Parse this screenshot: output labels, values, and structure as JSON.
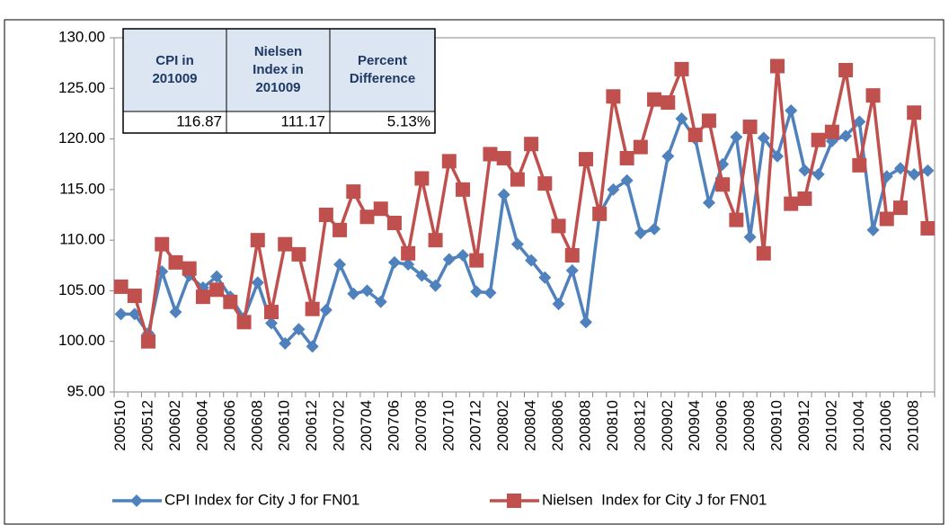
{
  "chart_data": {
    "type": "line",
    "categories": [
      "200510",
      null,
      "200512",
      null,
      "200602",
      null,
      "200604",
      null,
      "200606",
      null,
      "200608",
      null,
      "200610",
      null,
      "200612",
      null,
      "200702",
      null,
      "200704",
      null,
      "200706",
      null,
      "200708",
      null,
      "200710",
      null,
      "200712",
      null,
      "200802",
      null,
      "200804",
      null,
      "200806",
      null,
      "200808",
      null,
      "200810",
      null,
      "200812",
      null,
      "200902",
      null,
      "200904",
      null,
      "200906",
      null,
      "200908",
      null,
      "200910",
      null,
      "200912",
      null,
      "201002",
      null,
      "201004",
      null,
      "201006",
      null,
      "201008",
      null
    ],
    "series": [
      {
        "name": "CPI Index for City J for FN01",
        "color": "#4f81bd",
        "marker": "diamond",
        "values": [
          102.7,
          102.7,
          100.8,
          106.9,
          102.9,
          106.5,
          105.3,
          106.4,
          104.4,
          102.3,
          105.8,
          101.8,
          99.8,
          101.2,
          99.5,
          103.1,
          107.6,
          104.7,
          105.0,
          103.9,
          107.8,
          107.6,
          106.5,
          105.5,
          108.1,
          108.5,
          104.9,
          104.8,
          114.5,
          109.6,
          108.0,
          106.3,
          103.7,
          107.0,
          101.9,
          112.6,
          115.0,
          115.9,
          110.7,
          111.1,
          118.3,
          122.0,
          120.0,
          113.7,
          117.5,
          120.2,
          110.3,
          120.1,
          118.3,
          122.8,
          116.9,
          116.5,
          119.8,
          120.3,
          121.7,
          111.0,
          116.3,
          117.1,
          116.5,
          116.87
        ]
      },
      {
        "name": "Nielsen  Index for City J for FN01",
        "color": "#c0504d",
        "marker": "square",
        "values": [
          105.4,
          104.5,
          100.0,
          109.6,
          107.8,
          107.2,
          104.4,
          105.1,
          103.9,
          101.9,
          110.0,
          102.9,
          109.6,
          108.6,
          103.2,
          112.5,
          111.0,
          114.8,
          112.3,
          113.1,
          111.7,
          108.7,
          116.1,
          110.0,
          117.8,
          115.0,
          108.0,
          118.5,
          118.1,
          116.0,
          119.5,
          115.6,
          111.4,
          108.5,
          118.0,
          112.6,
          124.2,
          118.1,
          119.2,
          123.9,
          123.6,
          126.9,
          120.4,
          121.8,
          115.5,
          112.0,
          121.2,
          108.7,
          127.2,
          113.6,
          114.1,
          119.9,
          120.7,
          126.8,
          117.4,
          124.3,
          112.1,
          113.2,
          122.6,
          111.17
        ]
      }
    ],
    "ylim": [
      95,
      130
    ],
    "yticks": [
      {
        "value": 95,
        "label": "95.00"
      },
      {
        "value": 100,
        "label": "100.00"
      },
      {
        "value": 105,
        "label": "105.00"
      },
      {
        "value": 110,
        "label": "110.00"
      },
      {
        "value": 115,
        "label": "115.00"
      },
      {
        "value": 120,
        "label": "120.00"
      },
      {
        "value": 125,
        "label": "125.00"
      },
      {
        "value": 130,
        "label": "130.00"
      }
    ],
    "grid": false,
    "legend": "bottom",
    "table": {
      "columns": [
        [
          "CPI in",
          "201009"
        ],
        [
          "Nielsen",
          "Index in",
          "201009"
        ],
        [
          "Percent",
          "Difference"
        ]
      ],
      "cells": [
        "116.87",
        "111.17",
        "5.13%"
      ]
    }
  }
}
